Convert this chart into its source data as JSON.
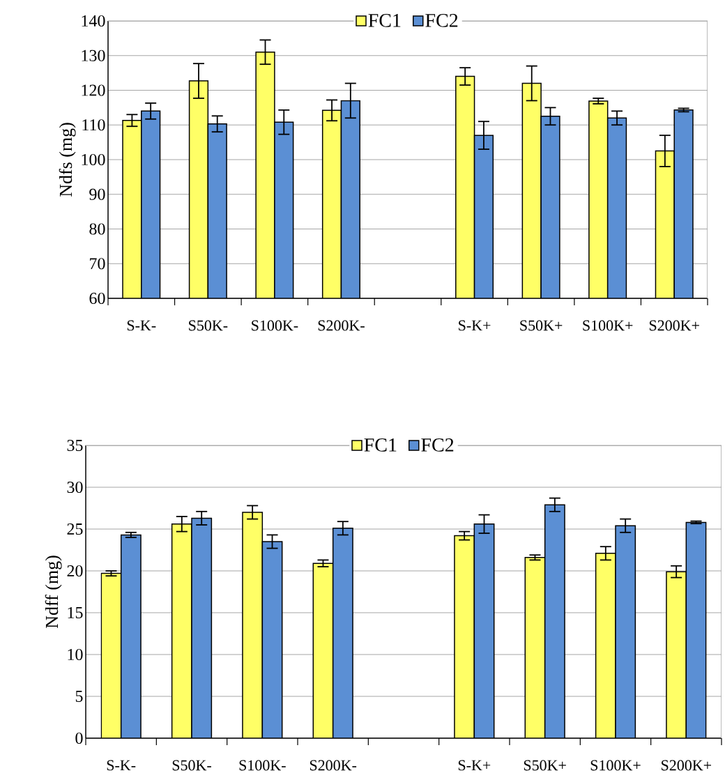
{
  "chart_data": [
    {
      "type": "bar",
      "ylabel": "Ndfs (mg)",
      "categories": [
        "S-K-",
        "S50K-",
        "S100K-",
        "S200K-",
        null,
        "S-K+",
        "S50K+",
        "S100K+",
        "S200K+"
      ],
      "series": [
        {
          "name": "FC1",
          "color": "#ffff66",
          "values": [
            111.3,
            122.7,
            131,
            114.2,
            null,
            124,
            122,
            116.9,
            102.5
          ],
          "errors": [
            1.7,
            5,
            3.5,
            3,
            null,
            2.5,
            5,
            0.8,
            4.5
          ]
        },
        {
          "name": "FC2",
          "color": "#5b8fd4",
          "values": [
            114,
            110.3,
            110.8,
            117,
            null,
            107,
            112.5,
            112,
            114.3
          ],
          "errors": [
            2.3,
            2.3,
            3.5,
            5,
            null,
            4,
            2.5,
            2,
            0.5
          ]
        }
      ],
      "ylim": [
        60,
        140
      ],
      "yticks": [
        60,
        70,
        80,
        90,
        100,
        110,
        120,
        130,
        140
      ],
      "grid": "y",
      "legend": "top"
    },
    {
      "type": "bar",
      "ylabel": "Ndff (mg)",
      "categories": [
        "S-K-",
        "S50K-",
        "S100K-",
        "S200K-",
        null,
        "S-K+",
        "S50K+",
        "S100K+",
        "S200K+"
      ],
      "series": [
        {
          "name": "FC1",
          "color": "#ffff66",
          "values": [
            19.7,
            25.6,
            27,
            20.9,
            null,
            24.2,
            21.6,
            22.1,
            19.9
          ],
          "errors": [
            0.3,
            0.9,
            0.8,
            0.4,
            null,
            0.5,
            0.3,
            0.8,
            0.7
          ]
        },
        {
          "name": "FC2",
          "color": "#5b8fd4",
          "values": [
            24.3,
            26.3,
            23.5,
            25.1,
            null,
            25.6,
            27.9,
            25.4,
            25.8
          ],
          "errors": [
            0.3,
            0.8,
            0.8,
            0.8,
            null,
            1.1,
            0.8,
            0.8,
            0.15
          ]
        }
      ],
      "ylim": [
        0,
        35
      ],
      "yticks": [
        0,
        5,
        10,
        15,
        20,
        25,
        30,
        35
      ],
      "grid": "y",
      "legend": "top"
    }
  ]
}
